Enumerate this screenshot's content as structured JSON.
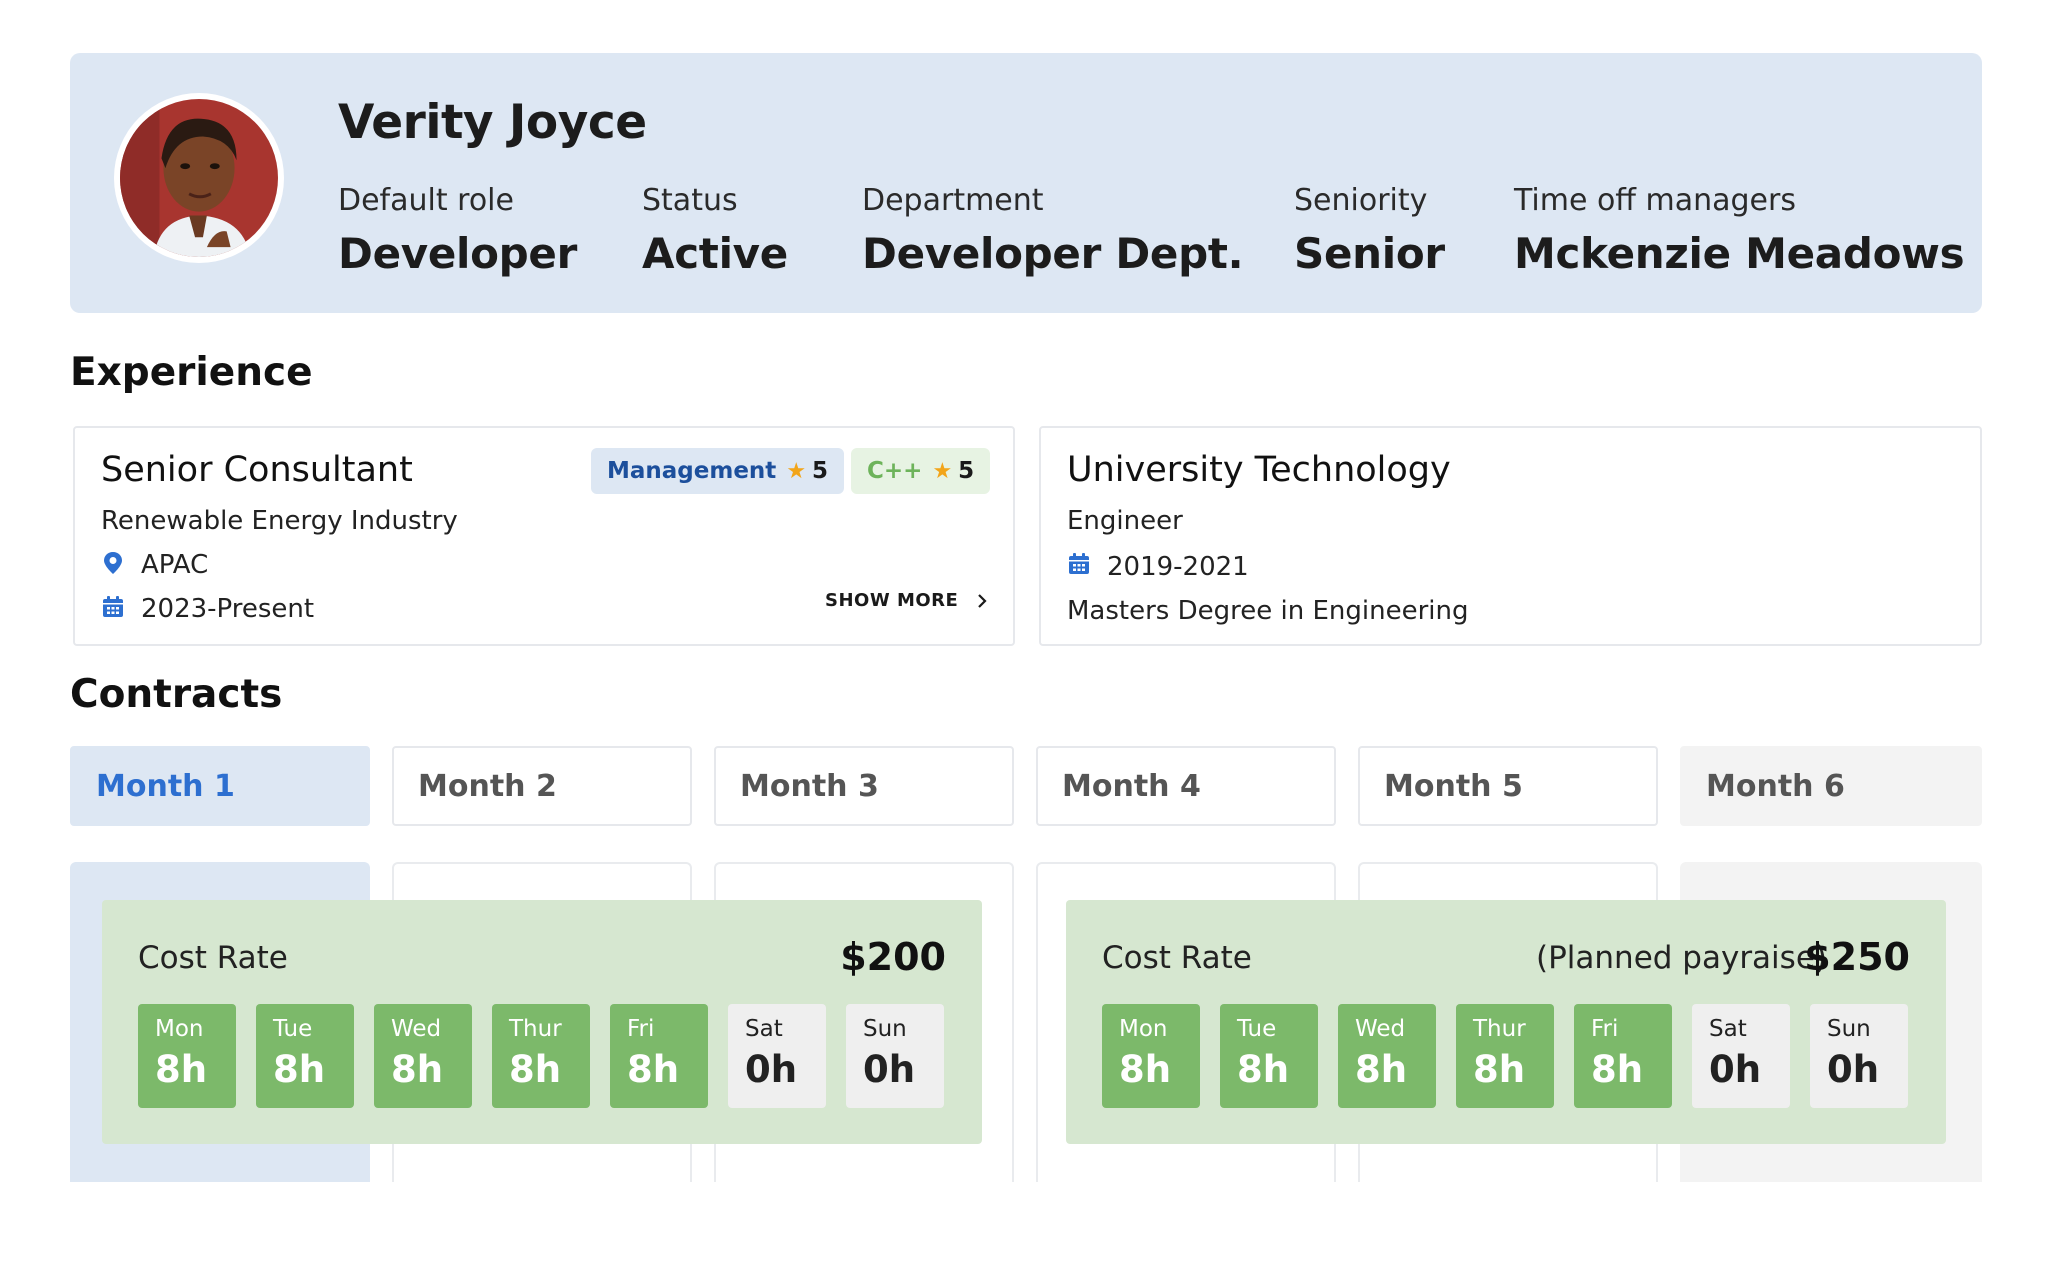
{
  "profile": {
    "name": "Verity Joyce",
    "fields": [
      {
        "label": "Default role",
        "value": "Developer"
      },
      {
        "label": "Status",
        "value": "Active"
      },
      {
        "label": "Department",
        "value": "Developer Dept."
      },
      {
        "label": "Seniority",
        "value": "Senior"
      },
      {
        "label": "Time off managers",
        "value": "Mckenzie Meadows"
      }
    ]
  },
  "experience": {
    "title": "Experience",
    "job": {
      "title": "Senior Consultant",
      "industry": "Renewable Energy Industry",
      "location": "APAC",
      "period": "2023-Present",
      "show_more": "SHOW MORE",
      "tags": [
        {
          "label": "Management",
          "rating": "5",
          "color": "#1c4f9c",
          "bg": "#dde7f3"
        },
        {
          "label": "C++",
          "rating": "5",
          "color": "#6db35a",
          "bg": "#e7f3e3"
        }
      ]
    },
    "education": {
      "title": "University Technology",
      "role": "Engineer",
      "period": "2019-2021",
      "degree": "Masters Degree in Engineering"
    }
  },
  "contracts": {
    "title": "Contracts",
    "tabs": [
      "Month 1",
      "Month 2",
      "Month 3",
      "Month 4",
      "Month 5",
      "Month 6"
    ],
    "active_tab": "Month 1",
    "panels": [
      {
        "label": "Cost Rate",
        "note": "",
        "amount": "$200",
        "days": [
          {
            "day": "Mon",
            "hours": "8h"
          },
          {
            "day": "Tue",
            "hours": "8h"
          },
          {
            "day": "Wed",
            "hours": "8h"
          },
          {
            "day": "Thur",
            "hours": "8h"
          },
          {
            "day": "Fri",
            "hours": "8h"
          },
          {
            "day": "Sat",
            "hours": "0h"
          },
          {
            "day": "Sun",
            "hours": "0h"
          }
        ]
      },
      {
        "label": "Cost Rate",
        "note": "(Planned payraise)",
        "amount": "$250",
        "days": [
          {
            "day": "Mon",
            "hours": "8h"
          },
          {
            "day": "Tue",
            "hours": "8h"
          },
          {
            "day": "Wed",
            "hours": "8h"
          },
          {
            "day": "Thur",
            "hours": "8h"
          },
          {
            "day": "Fri",
            "hours": "8h"
          },
          {
            "day": "Sat",
            "hours": "0h"
          },
          {
            "day": "Sun",
            "hours": "0h"
          }
        ]
      }
    ]
  },
  "colors": {
    "accent_blue": "#2d6fd0",
    "header_bg": "#dde7f3",
    "workday_green": "#7cb96a",
    "panel_green": "#d6e7d0"
  }
}
